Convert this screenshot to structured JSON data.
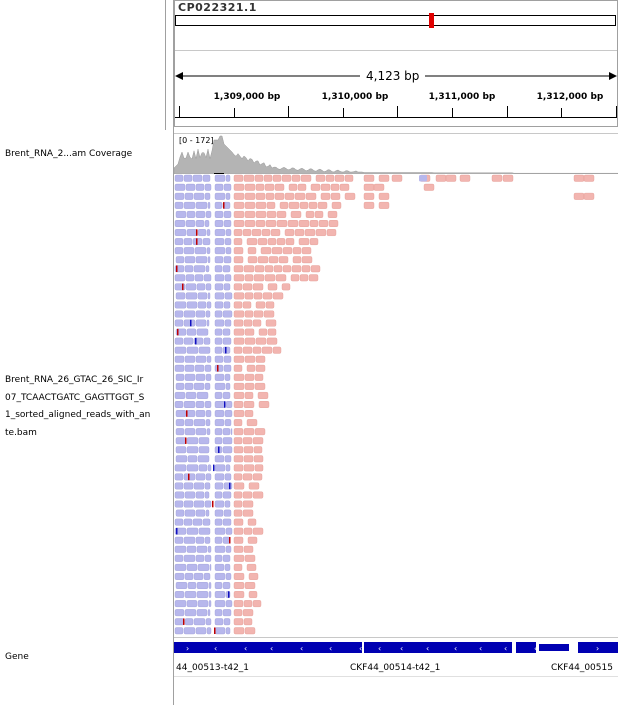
{
  "header": {
    "chromosome": "CP022321.1",
    "span_label": "4,123 bp"
  },
  "ruler": {
    "ticks": [
      {
        "label": "1,309,000 bp",
        "pos": 0.164
      },
      {
        "label": "1,310,000 bp",
        "pos": 0.407
      },
      {
        "label": "1,311,000 bp",
        "pos": 0.65
      },
      {
        "label": "1,312,000 bp",
        "pos": 0.893
      }
    ]
  },
  "tracks": {
    "coverage_label": "Brent_RNA_2...am Coverage",
    "coverage_range": "[0 - 172]",
    "bam_label": "Brent_RNA_26_GTAC_26_SIC_Ir\n07_TCAACTGATC_GAGTTGGT_S\n1_sorted_aligned_reads_with_an\nte.bam",
    "gene_label": "Gene"
  },
  "genes": [
    {
      "name": "44_00513-t42_1"
    },
    {
      "name": "CKF44_00514-t42_1"
    },
    {
      "name": "CKF44_00515"
    }
  ],
  "colors": {
    "forward_read": "#f2b5b0",
    "reverse_read": "#b7b7ec",
    "coverage": "#b4b4b4",
    "gene": "#0000b2",
    "ideogram_marker": "#e00000"
  }
}
